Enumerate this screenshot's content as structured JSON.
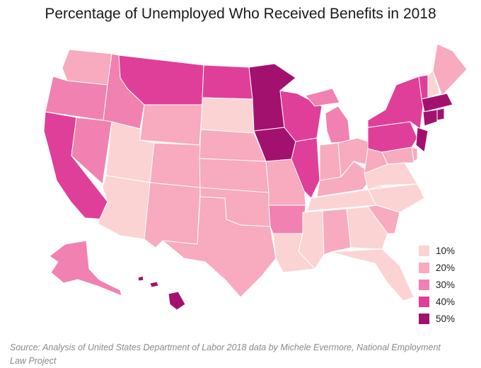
{
  "title": "Percentage of Unemployed Who Received Benefits in 2018",
  "source": "Source: Analysis of United States Department of Labor 2018 data by Michele Evermore, National Employment Law Project",
  "legend": [
    {
      "label": "10%",
      "color": "#fcd3d3"
    },
    {
      "label": "20%",
      "color": "#f8aabf"
    },
    {
      "label": "30%",
      "color": "#f181b0"
    },
    {
      "label": "40%",
      "color": "#df3f98"
    },
    {
      "label": "50%",
      "color": "#a3116f"
    }
  ],
  "states": [
    {
      "code": "WA",
      "bin": 1
    },
    {
      "code": "OR",
      "bin": 2
    },
    {
      "code": "CA",
      "bin": 3
    },
    {
      "code": "ID",
      "bin": 2
    },
    {
      "code": "NV",
      "bin": 2
    },
    {
      "code": "MT",
      "bin": 3
    },
    {
      "code": "WY",
      "bin": 1
    },
    {
      "code": "UT",
      "bin": 0
    },
    {
      "code": "AZ",
      "bin": 0
    },
    {
      "code": "CO",
      "bin": 1
    },
    {
      "code": "NM",
      "bin": 1
    },
    {
      "code": "ND",
      "bin": 3
    },
    {
      "code": "SD",
      "bin": 0
    },
    {
      "code": "NE",
      "bin": 1
    },
    {
      "code": "KS",
      "bin": 1
    },
    {
      "code": "OK",
      "bin": 1
    },
    {
      "code": "TX",
      "bin": 1
    },
    {
      "code": "MN",
      "bin": 4
    },
    {
      "code": "IA",
      "bin": 4
    },
    {
      "code": "MO",
      "bin": 1
    },
    {
      "code": "AR",
      "bin": 2
    },
    {
      "code": "LA",
      "bin": 0
    },
    {
      "code": "WI",
      "bin": 3
    },
    {
      "code": "IL",
      "bin": 3
    },
    {
      "code": "MS",
      "bin": 0
    },
    {
      "code": "MI",
      "bin": 2
    },
    {
      "code": "IN",
      "bin": 1
    },
    {
      "code": "KY",
      "bin": 1
    },
    {
      "code": "TN",
      "bin": 0
    },
    {
      "code": "AL",
      "bin": 1
    },
    {
      "code": "GA",
      "bin": 0
    },
    {
      "code": "FL",
      "bin": 0
    },
    {
      "code": "OH",
      "bin": 1
    },
    {
      "code": "WV",
      "bin": 1
    },
    {
      "code": "VA",
      "bin": 0
    },
    {
      "code": "NC",
      "bin": 0
    },
    {
      "code": "SC",
      "bin": 1
    },
    {
      "code": "PA",
      "bin": 3
    },
    {
      "code": "NY",
      "bin": 3
    },
    {
      "code": "NJ",
      "bin": 4
    },
    {
      "code": "MD",
      "bin": 1
    },
    {
      "code": "DE",
      "bin": 1
    },
    {
      "code": "VT",
      "bin": 3
    },
    {
      "code": "NH",
      "bin": 0
    },
    {
      "code": "ME",
      "bin": 1
    },
    {
      "code": "MA",
      "bin": 4
    },
    {
      "code": "CT",
      "bin": 4
    },
    {
      "code": "RI",
      "bin": 4
    },
    {
      "code": "AK",
      "bin": 2
    },
    {
      "code": "HI",
      "bin": 4
    }
  ]
}
